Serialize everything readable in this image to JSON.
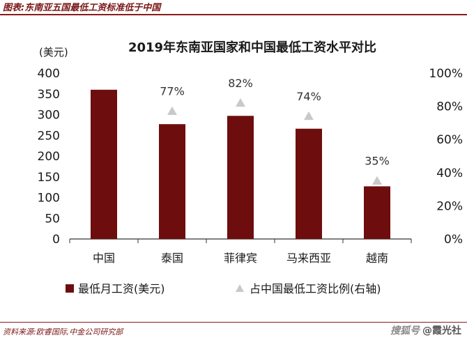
{
  "caption": "图表:东南亚五国最低工资标准低于中国",
  "source": "资料来源:欧睿国际,中金公司研究部",
  "watermark": {
    "logo_text": "搜狐号",
    "account": "@霞光社"
  },
  "chart_data": {
    "type": "bar",
    "title": "2019年东南亚国家和中国最低工资水平对比",
    "left_axis_unit": "(美元)",
    "categories": [
      "中国",
      "泰国",
      "菲律宾",
      "马来西亚",
      "越南"
    ],
    "series": [
      {
        "name": "最低月工资(美元)",
        "type": "bar",
        "axis": "left",
        "values": [
          360,
          277,
          297,
          266,
          127
        ]
      },
      {
        "name": "占中国最低工资比例(右轴)",
        "type": "scatter",
        "axis": "right",
        "values": [
          null,
          77,
          82,
          74,
          35
        ],
        "labels": [
          "",
          "77%",
          "82%",
          "74%",
          "35%"
        ]
      }
    ],
    "left_axis": {
      "ylim": [
        0,
        400
      ],
      "ticks": [
        "0",
        "50",
        "100",
        "150",
        "200",
        "250",
        "300",
        "350",
        "400"
      ]
    },
    "right_axis": {
      "ylim": [
        0,
        100
      ],
      "ticks": [
        "0%",
        "20%",
        "40%",
        "60%",
        "80%",
        "100%"
      ]
    },
    "grid": false,
    "legend_position": "bottom",
    "colors": {
      "bar": "#6e0d0d",
      "marker": "#c9c9c9",
      "accent": "#8a1a1a"
    }
  }
}
